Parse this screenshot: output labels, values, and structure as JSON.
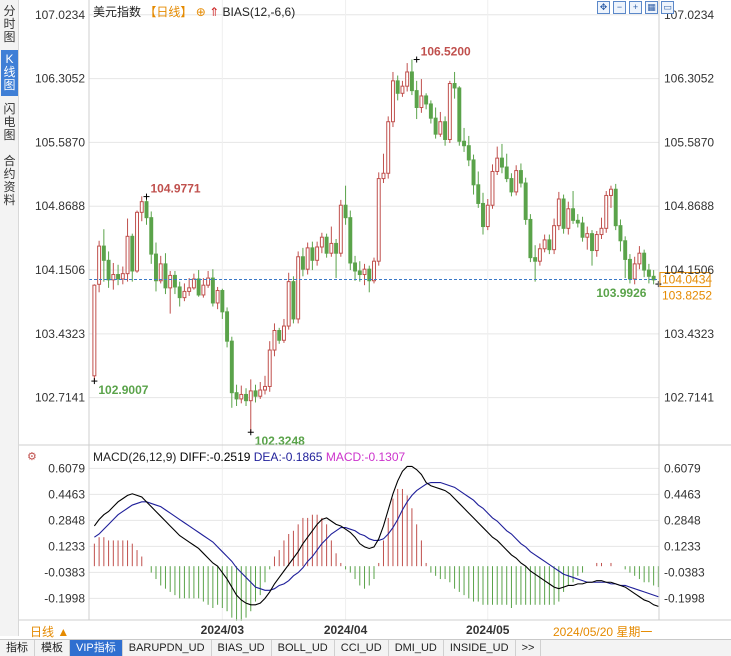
{
  "side_tabs": [
    {
      "label": "分时图",
      "active": false
    },
    {
      "label": "K线图",
      "active": true
    },
    {
      "label": "闪电图",
      "active": false
    },
    {
      "label": "合约资料",
      "active": false
    }
  ],
  "header": {
    "name": "美元指数",
    "period": "【日线】",
    "plus": "⊕",
    "arrow": "⇑",
    "indicator": "BIAS(12,-6,6)"
  },
  "toolbar": {
    "icons": [
      "expand-icon",
      "zoom-out-icon",
      "zoom-in-icon",
      "settings-icon",
      "minimize-icon"
    ]
  },
  "footer": {
    "period_button": "日线 ▲",
    "cursor_date": "2024/05/20 星期一"
  },
  "bottom_tabs": [
    {
      "label": "指标",
      "active": false
    },
    {
      "label": "模板",
      "active": false
    },
    {
      "label": "VIP指标",
      "active": true
    },
    {
      "label": "BARUPDN_UD",
      "active": false
    },
    {
      "label": "BIAS_UD",
      "active": false
    },
    {
      "label": "BOLL_UD",
      "active": false
    },
    {
      "label": "CCI_UD",
      "active": false
    },
    {
      "label": "DMI_UD",
      "active": false
    },
    {
      "label": "INSIDE_UD",
      "active": false
    },
    {
      "label": ">>",
      "active": false
    }
  ],
  "colors": {
    "up": "#c0504d",
    "down": "#5aa34a",
    "grid": "#e6e6e6",
    "dashed": "#3a78c6",
    "diff_line": "#000000",
    "dea_line": "#1f1f9a",
    "macd_label": "#cc33cc",
    "last_price_box": "#e58a00"
  },
  "chart_data": [
    {
      "type": "candlestick",
      "title": "美元指数",
      "y_ticks": [
        "107.0234",
        "106.3052",
        "105.5870",
        "104.8688",
        "104.1506",
        "103.4323",
        "102.7141"
      ],
      "y_tick_values": [
        107.0234,
        106.3052,
        105.587,
        104.8688,
        104.1506,
        103.4323,
        102.7141
      ],
      "ylim": [
        102.35,
        107.1
      ],
      "x_labels": [
        "2024/03",
        "2024/04",
        "2024/05"
      ],
      "x_label_index": [
        27,
        53,
        83
      ],
      "last_price": "104.0434",
      "last_price_value": 104.0434,
      "cursor_price": "103.8252",
      "annotations": [
        {
          "text": "104.9771",
          "value": 104.9771,
          "index": 11,
          "kind": "high",
          "color": "up"
        },
        {
          "text": "102.9007",
          "value": 102.9007,
          "index": 0,
          "kind": "low",
          "color": "down"
        },
        {
          "text": "106.5200",
          "value": 106.52,
          "index": 68,
          "kind": "high",
          "color": "up"
        },
        {
          "text": "102.3248",
          "value": 102.3248,
          "index": 33,
          "kind": "low",
          "color": "down"
        },
        {
          "text": "103.9926",
          "value": 103.9926,
          "index": 119,
          "kind": "low",
          "color": "down"
        }
      ],
      "candles": [
        [
          102.96,
          103.98,
          103.99,
          102.9
        ],
        [
          103.99,
          104.42,
          104.48,
          103.9
        ],
        [
          104.42,
          104.26,
          104.61,
          104.02
        ],
        [
          104.26,
          104.04,
          104.36,
          103.95
        ],
        [
          104.04,
          104.1,
          104.23,
          103.93
        ],
        [
          104.1,
          104.05,
          104.21,
          103.98
        ],
        [
          104.05,
          104.11,
          104.19,
          103.99
        ],
        [
          104.11,
          104.53,
          104.73,
          104.02
        ],
        [
          104.53,
          104.14,
          104.56,
          104.02
        ],
        [
          104.14,
          104.8,
          104.82,
          104.12
        ],
        [
          104.8,
          104.92,
          104.98,
          104.7
        ],
        [
          104.92,
          104.74,
          104.96,
          104.66
        ],
        [
          104.74,
          104.33,
          104.81,
          104.22
        ],
        [
          104.33,
          104.03,
          104.46,
          103.91
        ],
        [
          104.03,
          104.22,
          104.31,
          104.0
        ],
        [
          104.22,
          103.95,
          104.34,
          103.88
        ],
        [
          103.95,
          104.09,
          104.14,
          103.66
        ],
        [
          104.09,
          103.96,
          104.14,
          103.88
        ],
        [
          103.96,
          103.84,
          104.02,
          103.74
        ],
        [
          103.84,
          103.91,
          104.0,
          103.8
        ],
        [
          103.91,
          103.95,
          104.06,
          103.86
        ],
        [
          103.95,
          104.05,
          104.11,
          103.93
        ],
        [
          104.05,
          103.87,
          104.15,
          103.85
        ],
        [
          103.87,
          103.98,
          104.06,
          103.84
        ],
        [
          103.98,
          104.06,
          104.14,
          103.95
        ],
        [
          104.06,
          103.78,
          104.16,
          103.74
        ],
        [
          103.78,
          103.92,
          103.96,
          103.71
        ],
        [
          103.92,
          103.68,
          103.94,
          103.6
        ],
        [
          103.68,
          103.35,
          103.73,
          103.28
        ],
        [
          103.35,
          102.77,
          103.4,
          102.6
        ],
        [
          102.77,
          102.7,
          102.86,
          102.62
        ],
        [
          102.7,
          102.75,
          102.85,
          102.65
        ],
        [
          102.75,
          102.68,
          102.82,
          102.62
        ],
        [
          102.68,
          102.79,
          102.92,
          102.32
        ],
        [
          102.79,
          102.73,
          102.86,
          102.66
        ],
        [
          102.73,
          102.8,
          102.89,
          102.7
        ],
        [
          102.8,
          102.84,
          102.96,
          102.75
        ],
        [
          102.84,
          103.25,
          103.35,
          102.78
        ],
        [
          103.25,
          103.47,
          103.55,
          103.18
        ],
        [
          103.47,
          103.36,
          103.5,
          103.32
        ],
        [
          103.36,
          103.52,
          103.6,
          103.33
        ],
        [
          103.52,
          104.02,
          104.12,
          103.48
        ],
        [
          104.02,
          103.6,
          104.08,
          103.55
        ],
        [
          103.6,
          104.3,
          104.36,
          103.55
        ],
        [
          104.3,
          104.16,
          104.4,
          104.08
        ],
        [
          104.16,
          104.4,
          104.46,
          104.1
        ],
        [
          104.4,
          104.26,
          104.47,
          104.15
        ],
        [
          104.26,
          104.41,
          104.47,
          104.2
        ],
        [
          104.41,
          104.52,
          104.57,
          104.34
        ],
        [
          104.52,
          104.34,
          104.56,
          104.29
        ],
        [
          104.34,
          104.45,
          104.64,
          104.3
        ],
        [
          104.45,
          104.34,
          104.5,
          104.06
        ],
        [
          104.34,
          104.88,
          104.94,
          104.3
        ],
        [
          104.88,
          104.74,
          105.1,
          104.66
        ],
        [
          104.74,
          104.23,
          104.82,
          104.15
        ],
        [
          104.23,
          104.14,
          104.31,
          104.03
        ],
        [
          104.14,
          104.1,
          104.25,
          104.02
        ],
        [
          104.1,
          104.16,
          104.22,
          103.98
        ],
        [
          104.16,
          104.03,
          104.2,
          103.9
        ],
        [
          104.03,
          104.25,
          104.29,
          104.0
        ],
        [
          104.25,
          105.18,
          105.25,
          104.2
        ],
        [
          105.18,
          105.24,
          105.46,
          105.13
        ],
        [
          105.24,
          105.82,
          105.88,
          105.18
        ],
        [
          105.82,
          106.28,
          106.38,
          105.76
        ],
        [
          106.28,
          106.14,
          106.34,
          106.06
        ],
        [
          106.14,
          106.22,
          106.28,
          106.1
        ],
        [
          106.22,
          106.38,
          106.48,
          106.16
        ],
        [
          106.38,
          106.17,
          106.52,
          106.12
        ],
        [
          106.17,
          105.98,
          106.28,
          105.85
        ],
        [
          105.98,
          106.11,
          106.3,
          105.92
        ],
        [
          106.11,
          106.02,
          106.14,
          105.96
        ],
        [
          106.02,
          105.86,
          106.06,
          105.8
        ],
        [
          105.86,
          105.68,
          105.98,
          105.63
        ],
        [
          105.68,
          105.82,
          105.93,
          105.65
        ],
        [
          105.82,
          105.62,
          105.88,
          105.55
        ],
        [
          105.62,
          106.25,
          106.28,
          105.58
        ],
        [
          106.25,
          106.2,
          106.38,
          106.08
        ],
        [
          106.2,
          105.6,
          106.22,
          105.55
        ],
        [
          105.6,
          105.55,
          105.75,
          105.48
        ],
        [
          105.55,
          105.39,
          105.66,
          105.32
        ],
        [
          105.39,
          105.11,
          105.45,
          105.0
        ],
        [
          105.11,
          104.9,
          105.26,
          104.85
        ],
        [
          104.9,
          104.64,
          105.02,
          104.55
        ],
        [
          104.64,
          104.88,
          104.95,
          104.6
        ],
        [
          104.88,
          105.26,
          105.34,
          104.84
        ],
        [
          105.26,
          105.41,
          105.54,
          105.22
        ],
        [
          105.41,
          105.31,
          105.57,
          105.24
        ],
        [
          105.31,
          105.18,
          105.46,
          105.14
        ],
        [
          105.18,
          105.03,
          105.24,
          104.98
        ],
        [
          105.03,
          105.27,
          105.33,
          104.99
        ],
        [
          105.27,
          105.13,
          105.35,
          105.08
        ],
        [
          105.13,
          104.72,
          105.19,
          104.66
        ],
        [
          104.72,
          104.29,
          104.78,
          104.24
        ],
        [
          104.29,
          104.25,
          104.43,
          104.02
        ],
        [
          104.25,
          104.39,
          104.45,
          104.2
        ],
        [
          104.39,
          104.49,
          104.55,
          104.35
        ],
        [
          104.49,
          104.38,
          104.55,
          104.33
        ],
        [
          104.38,
          104.65,
          104.73,
          104.33
        ],
        [
          104.65,
          104.95,
          105.03,
          104.6
        ],
        [
          104.95,
          104.62,
          105.0,
          104.56
        ],
        [
          104.62,
          104.84,
          104.92,
          104.55
        ],
        [
          104.84,
          104.71,
          105.04,
          104.67
        ],
        [
          104.71,
          104.68,
          104.78,
          104.63
        ],
        [
          104.68,
          104.52,
          104.75,
          104.47
        ],
        [
          104.52,
          104.56,
          104.64,
          104.38
        ],
        [
          104.56,
          104.37,
          104.6,
          104.2
        ],
        [
          104.37,
          104.55,
          104.59,
          104.3
        ],
        [
          104.55,
          104.62,
          104.74,
          104.5
        ],
        [
          104.62,
          104.99,
          105.04,
          104.57
        ],
        [
          104.99,
          105.06,
          105.1,
          104.85
        ],
        [
          105.06,
          104.65,
          105.12,
          104.6
        ],
        [
          104.65,
          104.48,
          104.72,
          104.36
        ],
        [
          104.48,
          104.27,
          104.53,
          104.06
        ],
        [
          104.27,
          104.05,
          104.33,
          104.0
        ],
        [
          104.05,
          104.22,
          104.3,
          103.99
        ],
        [
          104.22,
          104.34,
          104.42,
          104.16
        ],
        [
          104.34,
          104.15,
          104.38,
          104.07
        ],
        [
          104.15,
          104.08,
          104.22,
          104.0
        ],
        [
          104.08,
          104.04,
          104.15,
          103.99
        ]
      ]
    },
    {
      "type": "macd",
      "title": "MACD(26,12,9)",
      "diff": "DIFF:-0.2519",
      "dea": "DEA:-0.1865",
      "macd": "MACD:-0.1307",
      "y_ticks": [
        "0.6079",
        "0.4463",
        "0.2848",
        "0.1233",
        "-0.0383",
        "-0.1998"
      ],
      "y_tick_values": [
        0.6079,
        0.4463,
        0.2848,
        0.1233,
        -0.0383,
        -0.1998
      ],
      "ylim": [
        -0.26,
        0.66
      ],
      "diff_values": [
        0.25,
        0.29,
        0.32,
        0.34,
        0.37,
        0.4,
        0.42,
        0.44,
        0.45,
        0.44,
        0.43,
        0.4,
        0.37,
        0.34,
        0.31,
        0.28,
        0.25,
        0.22,
        0.19,
        0.17,
        0.15,
        0.13,
        0.11,
        0.08,
        0.05,
        0.02,
        0.0,
        -0.04,
        -0.08,
        -0.13,
        -0.18,
        -0.21,
        -0.23,
        -0.24,
        -0.24,
        -0.23,
        -0.2,
        -0.16,
        -0.11,
        -0.07,
        -0.03,
        0.01,
        0.05,
        0.09,
        0.14,
        0.18,
        0.22,
        0.26,
        0.29,
        0.3,
        0.28,
        0.26,
        0.25,
        0.23,
        0.21,
        0.18,
        0.14,
        0.12,
        0.11,
        0.12,
        0.17,
        0.25,
        0.35,
        0.45,
        0.53,
        0.59,
        0.62,
        0.62,
        0.6,
        0.57,
        0.52,
        0.5,
        0.49,
        0.48,
        0.47,
        0.45,
        0.42,
        0.39,
        0.36,
        0.33,
        0.3,
        0.27,
        0.24,
        0.21,
        0.18,
        0.16,
        0.13,
        0.1,
        0.07,
        0.05,
        0.02,
        0.0,
        -0.03,
        -0.05,
        -0.07,
        -0.09,
        -0.11,
        -0.13,
        -0.14,
        -0.13,
        -0.12,
        -0.12,
        -0.11,
        -0.11,
        -0.1,
        -0.1,
        -0.09,
        -0.09,
        -0.1,
        -0.1,
        -0.11,
        -0.12,
        -0.13,
        -0.15,
        -0.17,
        -0.19,
        -0.21,
        -0.22,
        -0.24,
        -0.25
      ],
      "dea_values": [
        0.18,
        0.2,
        0.23,
        0.26,
        0.29,
        0.32,
        0.34,
        0.36,
        0.38,
        0.39,
        0.4,
        0.4,
        0.39,
        0.38,
        0.37,
        0.35,
        0.33,
        0.31,
        0.29,
        0.27,
        0.25,
        0.23,
        0.21,
        0.19,
        0.17,
        0.15,
        0.12,
        0.09,
        0.06,
        0.03,
        -0.01,
        -0.04,
        -0.07,
        -0.1,
        -0.13,
        -0.14,
        -0.15,
        -0.15,
        -0.14,
        -0.12,
        -0.11,
        -0.09,
        -0.06,
        -0.04,
        -0.01,
        0.03,
        0.06,
        0.1,
        0.14,
        0.17,
        0.2,
        0.22,
        0.24,
        0.24,
        0.23,
        0.22,
        0.2,
        0.19,
        0.17,
        0.16,
        0.16,
        0.17,
        0.2,
        0.24,
        0.29,
        0.35,
        0.4,
        0.44,
        0.47,
        0.49,
        0.51,
        0.52,
        0.52,
        0.52,
        0.51,
        0.5,
        0.49,
        0.47,
        0.45,
        0.43,
        0.41,
        0.38,
        0.36,
        0.33,
        0.3,
        0.28,
        0.25,
        0.22,
        0.2,
        0.17,
        0.14,
        0.12,
        0.09,
        0.07,
        0.05,
        0.03,
        0.01,
        -0.01,
        -0.03,
        -0.05,
        -0.06,
        -0.07,
        -0.08,
        -0.09,
        -0.1,
        -0.1,
        -0.1,
        -0.1,
        -0.1,
        -0.11,
        -0.11,
        -0.12,
        -0.12,
        -0.13,
        -0.14,
        -0.15,
        -0.16,
        -0.17,
        -0.18,
        -0.19
      ],
      "macd_values": [
        0.14,
        0.18,
        0.18,
        0.16,
        0.16,
        0.16,
        0.16,
        0.16,
        0.14,
        0.1,
        0.06,
        0.0,
        -0.04,
        -0.08,
        -0.12,
        -0.14,
        -0.16,
        -0.18,
        -0.2,
        -0.2,
        -0.2,
        -0.2,
        -0.2,
        -0.22,
        -0.24,
        -0.26,
        -0.24,
        -0.26,
        -0.28,
        -0.32,
        -0.34,
        -0.34,
        -0.32,
        -0.28,
        -0.22,
        -0.18,
        -0.1,
        -0.02,
        0.06,
        0.1,
        0.16,
        0.2,
        0.22,
        0.26,
        0.3,
        0.3,
        0.32,
        0.32,
        0.3,
        0.26,
        0.16,
        0.08,
        0.02,
        -0.02,
        -0.04,
        -0.08,
        -0.12,
        -0.14,
        -0.12,
        -0.08,
        0.02,
        0.16,
        0.3,
        0.42,
        0.48,
        0.48,
        0.44,
        0.36,
        0.26,
        0.16,
        0.02,
        -0.04,
        -0.06,
        -0.08,
        -0.08,
        -0.1,
        -0.14,
        -0.16,
        -0.18,
        -0.2,
        -0.22,
        -0.22,
        -0.24,
        -0.24,
        -0.24,
        -0.24,
        -0.24,
        -0.24,
        -0.26,
        -0.24,
        -0.24,
        -0.24,
        -0.24,
        -0.24,
        -0.24,
        -0.24,
        -0.24,
        -0.24,
        -0.22,
        -0.16,
        -0.12,
        -0.1,
        -0.06,
        -0.04,
        0.0,
        0.0,
        0.02,
        0.02,
        0.0,
        0.02,
        0.0,
        0.0,
        -0.02,
        -0.04,
        -0.06,
        -0.08,
        -0.1,
        -0.1,
        -0.12,
        -0.13
      ]
    }
  ]
}
